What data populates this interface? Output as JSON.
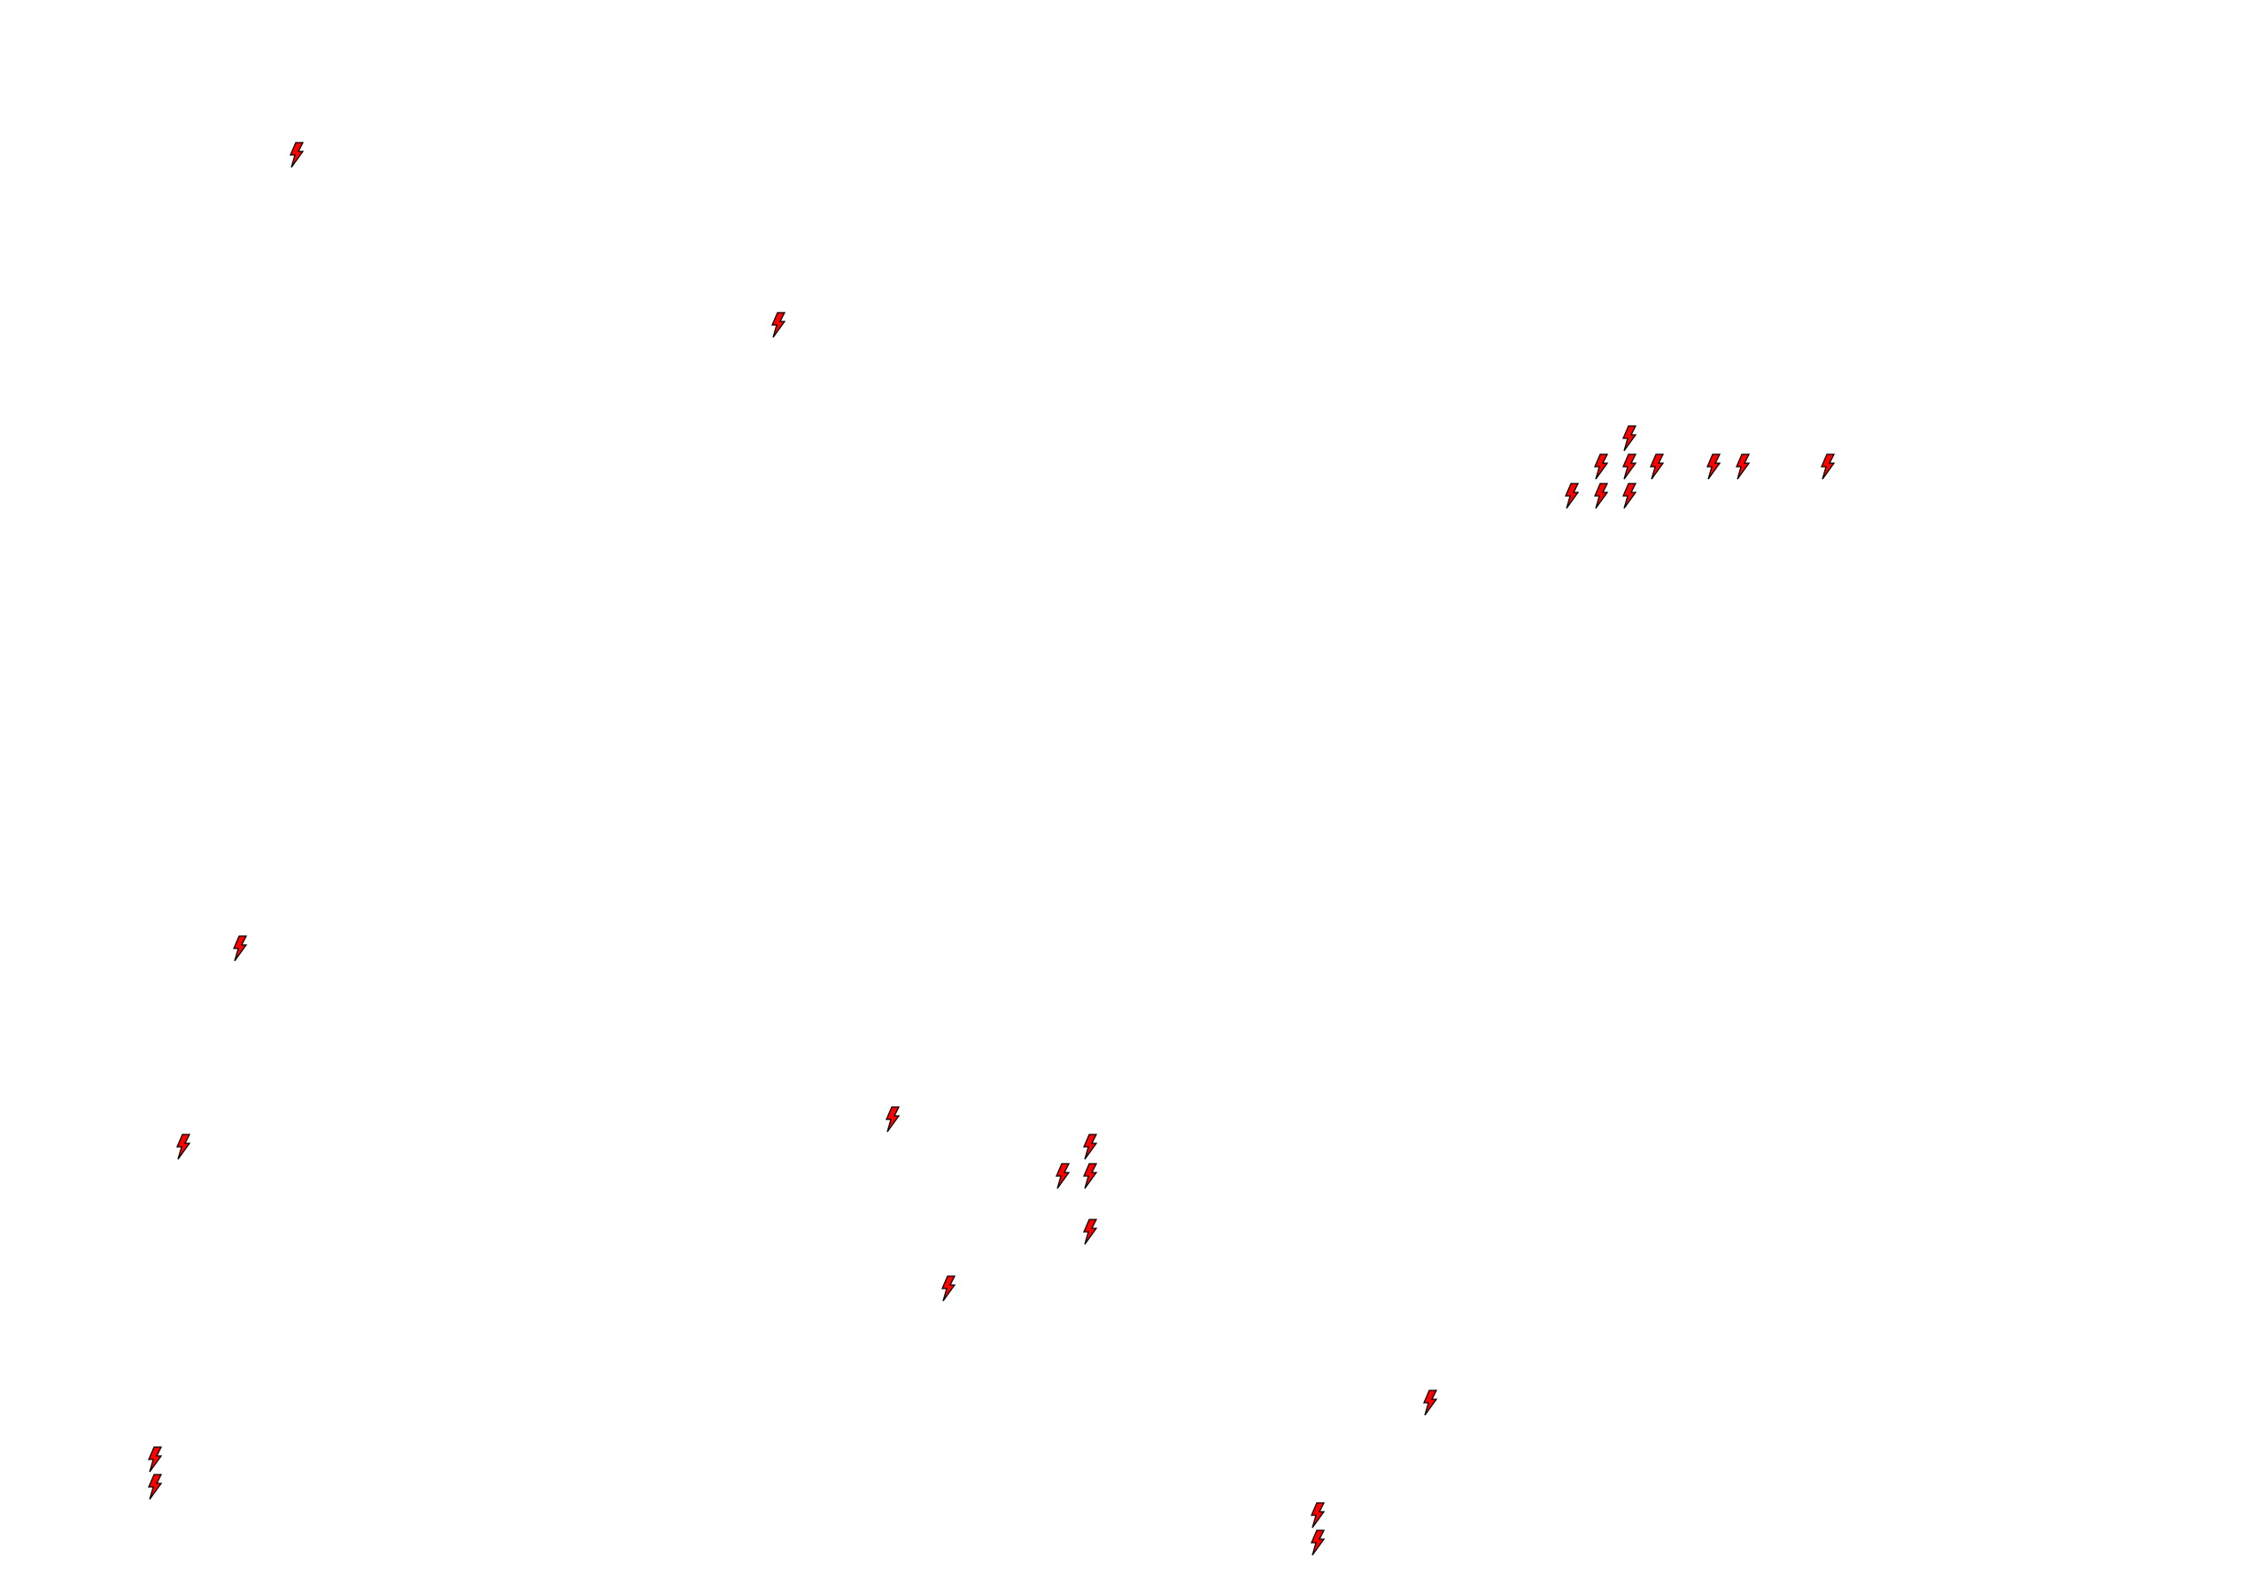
{
  "map": {
    "background": "#ffffff",
    "marker": {
      "icon": "lightning-bolt-icon",
      "fill": "#ff0000",
      "stroke": "#000000"
    }
  }
}
